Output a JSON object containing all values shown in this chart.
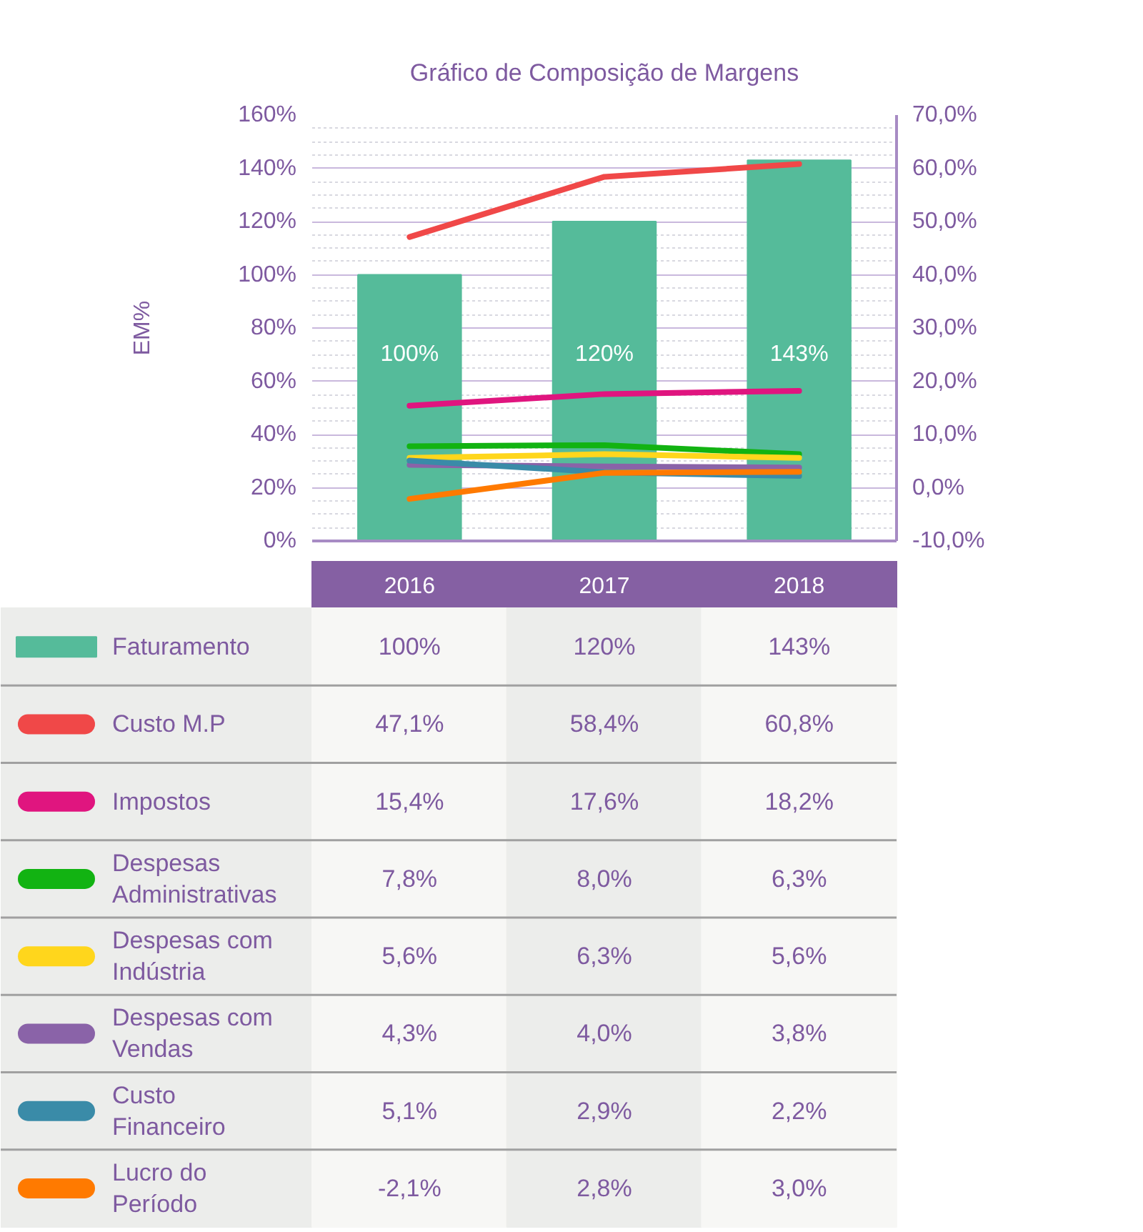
{
  "chart_data": {
    "type": "bar",
    "title": "Gráfico de Composição de Margens",
    "ylabel": "EM%",
    "categories": [
      "2016",
      "2017",
      "2018"
    ],
    "series": [
      {
        "name": "Faturamento",
        "color": "#55bb9a",
        "values": [
          100,
          120,
          143
        ],
        "value_labels": [
          "100%",
          "120%",
          "143%"
        ]
      },
      {
        "name": "Custo M.P",
        "type": "line",
        "axis": "y2",
        "color": "#f04848",
        "values": [
          47.1,
          58.4,
          60.8
        ],
        "value_labels": [
          "47,1%",
          "58,4%",
          "60,8%"
        ]
      },
      {
        "name": "Impostos",
        "type": "line",
        "axis": "y2",
        "color": "#e0157f",
        "values": [
          15.4,
          17.6,
          18.2
        ],
        "value_labels": [
          "15,4%",
          "17,6%",
          "18,2%"
        ]
      },
      {
        "name": "Despesas Administrativas",
        "type": "line",
        "axis": "y2",
        "color": "#12b312",
        "values": [
          7.8,
          8.0,
          6.3
        ],
        "value_labels": [
          "7,8%",
          "8,0%",
          "6,3%"
        ]
      },
      {
        "name": "Despesas com Indústria",
        "type": "line",
        "axis": "y2",
        "color": "#ffd61c",
        "values": [
          5.6,
          6.3,
          5.6
        ],
        "value_labels": [
          "5,6%",
          "6,3%",
          "5,6%"
        ]
      },
      {
        "name": "Despesas com Vendas",
        "type": "line",
        "axis": "y2",
        "color": "#8a63a8",
        "values": [
          4.3,
          4.0,
          3.8
        ],
        "value_labels": [
          "4,3%",
          "4,0%",
          "3,8%"
        ]
      },
      {
        "name": "Custo Financeiro",
        "type": "line",
        "axis": "y2",
        "color": "#3a8ba8",
        "values": [
          5.1,
          2.9,
          2.2
        ],
        "value_labels": [
          "5,1%",
          "2,9%",
          "2,2%"
        ]
      },
      {
        "name": "Lucro do Período",
        "type": "line",
        "axis": "y2",
        "color": "#ff7a00",
        "values": [
          -2.1,
          2.8,
          3.0
        ],
        "value_labels": [
          "-2,1%",
          "2,8%",
          "3,0%"
        ]
      }
    ],
    "ylim": [
      0,
      160
    ],
    "yticks": [
      {
        "value": 0,
        "label": "0%"
      },
      {
        "value": 20,
        "label": "20%"
      },
      {
        "value": 40,
        "label": "40%"
      },
      {
        "value": 60,
        "label": "60%"
      },
      {
        "value": 80,
        "label": "80%"
      },
      {
        "value": 100,
        "label": "100%"
      },
      {
        "value": 120,
        "label": "120%"
      },
      {
        "value": 140,
        "label": "140%"
      },
      {
        "value": 160,
        "label": "160%"
      }
    ],
    "y2lim": [
      -10,
      70
    ],
    "y2ticks": [
      {
        "value": -10,
        "label": "-10,0%"
      },
      {
        "value": 0,
        "label": "0,0%"
      },
      {
        "value": 10,
        "label": "10,0%"
      },
      {
        "value": 20,
        "label": "20,0%"
      },
      {
        "value": 30,
        "label": "30,0%"
      },
      {
        "value": 40,
        "label": "40,0%"
      },
      {
        "value": 50,
        "label": "50,0%"
      },
      {
        "value": 60,
        "label": "60,0%"
      },
      {
        "value": 70,
        "label": "70,0%"
      }
    ],
    "grid": "y",
    "legend": "bottom left"
  }
}
